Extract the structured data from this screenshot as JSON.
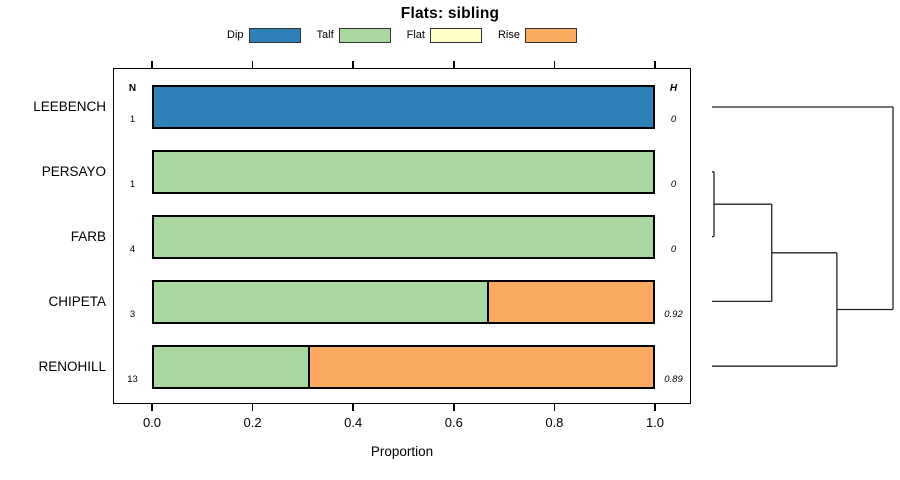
{
  "chart_data": {
    "type": "bar",
    "stacked": true,
    "orientation": "horizontal",
    "title": "Flats: sibling",
    "xlabel": "Proportion",
    "xlim": [
      0,
      1
    ],
    "x_ticks": [
      0.0,
      0.2,
      0.4,
      0.6,
      0.8,
      1.0
    ],
    "grid": false,
    "legend_position": "top",
    "categories": [
      "LEEBENCH",
      "PERSAYO",
      "FARB",
      "CHIPETA",
      "RENOHILL"
    ],
    "columns": {
      "n": {
        "header": "N",
        "values": [
          "1",
          "1",
          "4",
          "3",
          "13"
        ]
      },
      "h": {
        "header": "H",
        "values": [
          "0",
          "0",
          "0",
          "0.92",
          "0.89"
        ]
      }
    },
    "series": [
      {
        "name": "Dip",
        "color": "#2E80B9",
        "values": [
          1,
          0,
          0,
          0,
          0
        ]
      },
      {
        "name": "Talf",
        "color": "#A8D8A0",
        "values": [
          0,
          1,
          1,
          0.667,
          0.308
        ]
      },
      {
        "name": "Flat",
        "color": "#FFFFC8",
        "values": [
          0,
          0,
          0,
          0,
          0
        ]
      },
      {
        "name": "Rise",
        "color": "#FBAB60",
        "values": [
          0,
          0,
          0,
          0.333,
          0.692
        ]
      }
    ],
    "dendrogram": {
      "side": "right",
      "merge_order": [
        [
          "PERSAYO",
          "FARB"
        ],
        [
          "PERSAYO+FARB",
          "CHIPETA"
        ],
        [
          "PERSAYO+FARB+CHIPETA",
          "RENOHILL"
        ],
        [
          "ALL",
          "LEEBENCH"
        ]
      ],
      "segments": [
        [
          0,
          0,
          1,
          0
        ],
        [
          0,
          1,
          0.011,
          1
        ],
        [
          0,
          2,
          0.011,
          2
        ],
        [
          0.011,
          1,
          0.011,
          2
        ],
        [
          0.011,
          1.5,
          0.33,
          1.5
        ],
        [
          0.33,
          1.5,
          0.33,
          3
        ],
        [
          0,
          3,
          0.33,
          3
        ],
        [
          0.33,
          2.25,
          0.69,
          2.25
        ],
        [
          0.69,
          2.25,
          0.69,
          4
        ],
        [
          0,
          4,
          0.69,
          4
        ],
        [
          0.69,
          3.125,
          1,
          3.125
        ],
        [
          1,
          0,
          1,
          3.125
        ]
      ]
    }
  }
}
